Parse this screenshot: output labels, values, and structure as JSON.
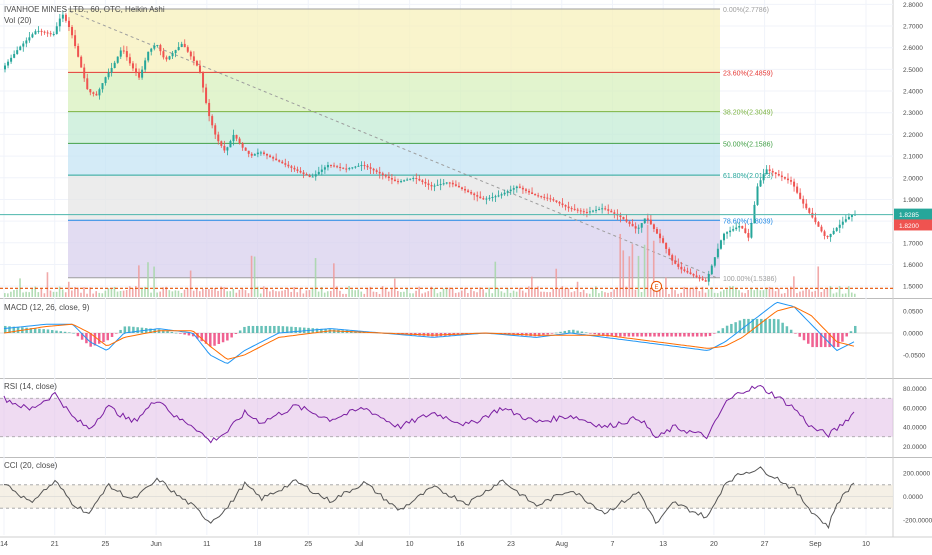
{
  "header": {
    "symbol_line": "IVANHOE MINES LTD., 60, OTC, Heikin Ashi",
    "volume_label": "Vol (20)"
  },
  "colors": {
    "up": "#26a69a",
    "down": "#ef5350",
    "grid": "#f0f3fa",
    "text": "#4a4a4a",
    "price_line": "#4db6ac",
    "dashed_level": "#e65100",
    "macd_line": "#2196f3",
    "macd_signal": "#ff6d00",
    "macd_hist": "#e91e63",
    "rsi_line": "#7b1fa2",
    "rsi_band": "#e1bee7",
    "cci_line": "#555555",
    "cci_band": "#f3ece0"
  },
  "chart_data": [
    {
      "type": "candlestick",
      "pane": "price",
      "chart_style": "Heikin Ashi",
      "interval": "60",
      "ylim": [
        1.45,
        2.82
      ],
      "yticks": [
        "2.8000",
        "2.7000",
        "2.6000",
        "2.5000",
        "2.4000",
        "2.3000",
        "2.2000",
        "2.1000",
        "2.0000",
        "1.9000",
        "1.8000",
        "1.7000",
        "1.6000",
        "1.5000"
      ],
      "x_labels": [
        "14",
        "21",
        "25",
        "Jun",
        "11",
        "18",
        "25",
        "Jul",
        "10",
        "16",
        "23",
        "Aug",
        "7",
        "13",
        "20",
        "27",
        "Sep",
        "10"
      ],
      "price_path": [
        [
          0,
          2.5
        ],
        [
          2,
          2.6
        ],
        [
          4,
          2.68
        ],
        [
          6,
          2.66
        ],
        [
          7,
          2.76
        ],
        [
          8,
          2.68
        ],
        [
          9,
          2.54
        ],
        [
          10,
          2.4
        ],
        [
          11,
          2.38
        ],
        [
          12,
          2.46
        ],
        [
          13,
          2.52
        ],
        [
          14,
          2.6
        ],
        [
          15,
          2.52
        ],
        [
          16,
          2.46
        ],
        [
          17,
          2.58
        ],
        [
          18,
          2.62
        ],
        [
          19,
          2.54
        ],
        [
          20,
          2.58
        ],
        [
          21,
          2.62
        ],
        [
          22,
          2.56
        ],
        [
          23,
          2.5
        ],
        [
          24,
          2.3
        ],
        [
          25,
          2.18
        ],
        [
          26,
          2.12
        ],
        [
          27,
          2.2
        ],
        [
          28,
          2.14
        ],
        [
          29,
          2.1
        ],
        [
          30,
          2.12
        ],
        [
          32,
          2.08
        ],
        [
          34,
          2.04
        ],
        [
          36,
          2.0
        ],
        [
          38,
          2.06
        ],
        [
          40,
          2.04
        ],
        [
          42,
          2.06
        ],
        [
          44,
          2.02
        ],
        [
          46,
          1.98
        ],
        [
          48,
          2.0
        ],
        [
          50,
          1.96
        ],
        [
          52,
          1.98
        ],
        [
          54,
          1.94
        ],
        [
          56,
          1.9
        ],
        [
          58,
          1.92
        ],
        [
          60,
          1.96
        ],
        [
          62,
          1.92
        ],
        [
          64,
          1.9
        ],
        [
          66,
          1.86
        ],
        [
          68,
          1.84
        ],
        [
          70,
          1.86
        ],
        [
          72,
          1.82
        ],
        [
          74,
          1.76
        ],
        [
          75,
          1.82
        ],
        [
          76,
          1.76
        ],
        [
          77,
          1.7
        ],
        [
          78,
          1.62
        ],
        [
          79,
          1.58
        ],
        [
          80,
          1.56
        ],
        [
          82,
          1.52
        ],
        [
          84,
          1.74
        ],
        [
          86,
          1.78
        ],
        [
          87,
          1.72
        ],
        [
          88,
          1.96
        ],
        [
          89,
          2.04
        ],
        [
          90,
          2.02
        ],
        [
          91,
          2.0
        ],
        [
          92,
          1.98
        ],
        [
          93,
          1.9
        ],
        [
          94,
          1.84
        ],
        [
          95,
          1.78
        ],
        [
          96,
          1.72
        ],
        [
          97,
          1.76
        ],
        [
          98,
          1.8
        ],
        [
          99,
          1.83
        ]
      ],
      "last_price": "1.8285",
      "second_price_tag": "1.8200",
      "dashed_level": 1.49,
      "horizontal_line": 1.83,
      "fibonacci": {
        "levels": [
          {
            "label": "0.00%(2.7786)",
            "price": 2.7786,
            "band_color": "#f6c6c6",
            "line_color": "#9e9e9e",
            "text_color": "#9e9e9e"
          },
          {
            "label": "23.60%(2.4859)",
            "price": 2.4859,
            "band_color": "#f7f0bb",
            "line_color": "#e53935",
            "text_color": "#e53935"
          },
          {
            "label": "38.20%(2.3049)",
            "price": 2.3049,
            "band_color": "#d8f0bd",
            "line_color": "#7cb342",
            "text_color": "#7cb342"
          },
          {
            "label": "50.00%(2.1586)",
            "price": 2.1586,
            "band_color": "#c4ecd6",
            "line_color": "#43a047",
            "text_color": "#43a047"
          },
          {
            "label": "61.80%(2.0123)",
            "price": 2.0123,
            "band_color": "#c5e4f4",
            "line_color": "#26a69a",
            "text_color": "#26a69a"
          },
          {
            "label": "78.60%(1.8039)",
            "price": 1.8039,
            "band_color": "#e6e6e6",
            "line_color": "#1e88e5",
            "text_color": "#1e88e5"
          },
          {
            "label": "100.00%(1.5386)",
            "price": 1.5386,
            "band_color": "#d8d0ee",
            "line_color": "#9e9e9e",
            "text_color": "#9e9e9e"
          }
        ]
      },
      "earnings_marker": "E"
    },
    {
      "type": "line",
      "pane": "macd",
      "title": "MACD (12, 26, close, 9)",
      "ylim": [
        -0.1,
        0.075
      ],
      "yticks": [
        "0.0500",
        "0.0000",
        "-0.0500"
      ],
      "macd": [
        [
          0,
          0.01
        ],
        [
          5,
          0.02
        ],
        [
          8,
          0.02
        ],
        [
          10,
          -0.02
        ],
        [
          12,
          -0.04
        ],
        [
          14,
          0.0
        ],
        [
          18,
          0.01
        ],
        [
          22,
          0.0
        ],
        [
          24,
          -0.05
        ],
        [
          26,
          -0.07
        ],
        [
          28,
          -0.04
        ],
        [
          32,
          0.0
        ],
        [
          38,
          0.01
        ],
        [
          44,
          0.0
        ],
        [
          50,
          -0.01
        ],
        [
          56,
          0.0
        ],
        [
          62,
          -0.01
        ],
        [
          66,
          0.0
        ],
        [
          70,
          -0.01
        ],
        [
          74,
          -0.02
        ],
        [
          78,
          -0.03
        ],
        [
          82,
          -0.04
        ],
        [
          84,
          -0.02
        ],
        [
          86,
          0.01
        ],
        [
          88,
          0.04
        ],
        [
          90,
          0.07
        ],
        [
          92,
          0.06
        ],
        [
          94,
          0.02
        ],
        [
          96,
          -0.02
        ],
        [
          97,
          -0.04
        ],
        [
          99,
          -0.02
        ]
      ],
      "signal": [
        [
          0,
          0.0
        ],
        [
          5,
          0.015
        ],
        [
          8,
          0.02
        ],
        [
          10,
          0.0
        ],
        [
          12,
          -0.03
        ],
        [
          14,
          -0.01
        ],
        [
          18,
          0.005
        ],
        [
          22,
          0.005
        ],
        [
          24,
          -0.03
        ],
        [
          26,
          -0.06
        ],
        [
          28,
          -0.05
        ],
        [
          32,
          -0.01
        ],
        [
          38,
          0.005
        ],
        [
          44,
          0.0
        ],
        [
          50,
          -0.005
        ],
        [
          56,
          0.0
        ],
        [
          62,
          -0.005
        ],
        [
          66,
          -0.005
        ],
        [
          70,
          -0.005
        ],
        [
          74,
          -0.015
        ],
        [
          78,
          -0.025
        ],
        [
          82,
          -0.035
        ],
        [
          84,
          -0.03
        ],
        [
          86,
          -0.01
        ],
        [
          88,
          0.02
        ],
        [
          90,
          0.05
        ],
        [
          92,
          0.06
        ],
        [
          94,
          0.04
        ],
        [
          96,
          0.0
        ],
        [
          97,
          -0.02
        ],
        [
          99,
          -0.03
        ]
      ]
    },
    {
      "type": "line",
      "pane": "rsi",
      "title": "RSI (14, close)",
      "ylim": [
        10,
        90
      ],
      "yticks": [
        "80.0000",
        "60.0000",
        "40.0000",
        "20.0000"
      ],
      "band": [
        30,
        70
      ],
      "values": [
        [
          0,
          70
        ],
        [
          3,
          58
        ],
        [
          6,
          75
        ],
        [
          8,
          50
        ],
        [
          10,
          38
        ],
        [
          12,
          62
        ],
        [
          15,
          45
        ],
        [
          18,
          70
        ],
        [
          20,
          50
        ],
        [
          22,
          42
        ],
        [
          24,
          25
        ],
        [
          26,
          35
        ],
        [
          28,
          55
        ],
        [
          30,
          45
        ],
        [
          34,
          62
        ],
        [
          38,
          48
        ],
        [
          42,
          60
        ],
        [
          46,
          40
        ],
        [
          50,
          55
        ],
        [
          54,
          42
        ],
        [
          58,
          60
        ],
        [
          62,
          45
        ],
        [
          66,
          52
        ],
        [
          70,
          40
        ],
        [
          74,
          50
        ],
        [
          76,
          28
        ],
        [
          78,
          40
        ],
        [
          80,
          35
        ],
        [
          82,
          30
        ],
        [
          84,
          65
        ],
        [
          86,
          78
        ],
        [
          88,
          82
        ],
        [
          90,
          72
        ],
        [
          92,
          60
        ],
        [
          94,
          40
        ],
        [
          96,
          32
        ],
        [
          97,
          38
        ],
        [
          99,
          55
        ]
      ]
    },
    {
      "type": "line",
      "pane": "cci",
      "title": "CCI (20, close)",
      "ylim": [
        -330,
        330
      ],
      "yticks": [
        "200.0000",
        "0.0000",
        "-200.0000"
      ],
      "band": [
        -100,
        100
      ],
      "values": [
        [
          0,
          120
        ],
        [
          3,
          -50
        ],
        [
          6,
          130
        ],
        [
          8,
          -60
        ],
        [
          10,
          -150
        ],
        [
          12,
          100
        ],
        [
          15,
          -30
        ],
        [
          18,
          150
        ],
        [
          20,
          20
        ],
        [
          22,
          -80
        ],
        [
          24,
          -220
        ],
        [
          26,
          -100
        ],
        [
          28,
          110
        ],
        [
          30,
          -20
        ],
        [
          34,
          130
        ],
        [
          38,
          -40
        ],
        [
          42,
          120
        ],
        [
          46,
          -120
        ],
        [
          50,
          80
        ],
        [
          54,
          -60
        ],
        [
          58,
          140
        ],
        [
          62,
          -80
        ],
        [
          66,
          60
        ],
        [
          70,
          -140
        ],
        [
          74,
          40
        ],
        [
          76,
          -240
        ],
        [
          78,
          -50
        ],
        [
          80,
          -120
        ],
        [
          82,
          -180
        ],
        [
          84,
          120
        ],
        [
          86,
          200
        ],
        [
          88,
          240
        ],
        [
          90,
          160
        ],
        [
          92,
          60
        ],
        [
          94,
          -120
        ],
        [
          96,
          -260
        ],
        [
          97,
          -60
        ],
        [
          99,
          120
        ]
      ]
    }
  ]
}
